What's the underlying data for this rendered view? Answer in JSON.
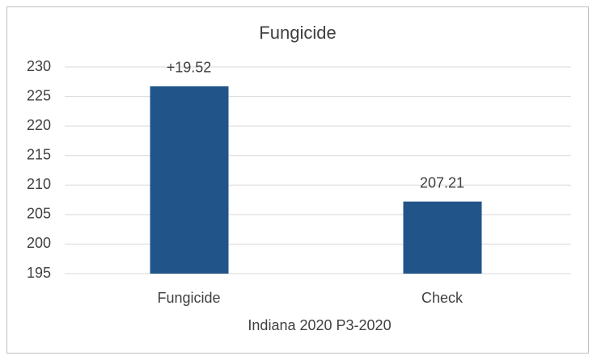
{
  "chart_data": {
    "type": "bar",
    "title": "Fungicide",
    "x_label": "Indiana 2020 P3-2020",
    "categories": [
      "Fungicide",
      "Check"
    ],
    "values": [
      226.73,
      207.21
    ],
    "color": "#215488",
    "annotations": [
      "+19.52"
    ],
    "ylim": [
      195,
      230
    ],
    "yticks": [
      195,
      200,
      205,
      210,
      215,
      220,
      225,
      230
    ],
    "grid": true
  }
}
